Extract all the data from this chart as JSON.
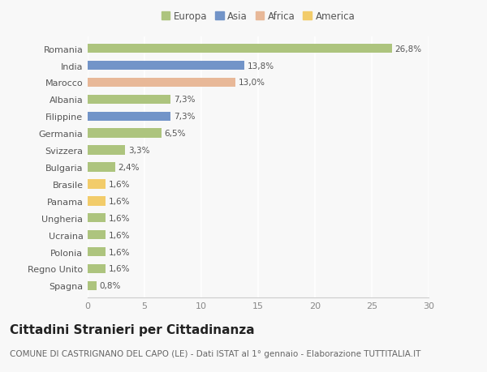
{
  "countries": [
    "Romania",
    "India",
    "Marocco",
    "Albania",
    "Filippine",
    "Germania",
    "Svizzera",
    "Bulgaria",
    "Brasile",
    "Panama",
    "Ungheria",
    "Ucraina",
    "Polonia",
    "Regno Unito",
    "Spagna"
  ],
  "values": [
    26.8,
    13.8,
    13.0,
    7.3,
    7.3,
    6.5,
    3.3,
    2.4,
    1.6,
    1.6,
    1.6,
    1.6,
    1.6,
    1.6,
    0.8
  ],
  "labels": [
    "26,8%",
    "13,8%",
    "13,0%",
    "7,3%",
    "7,3%",
    "6,5%",
    "3,3%",
    "2,4%",
    "1,6%",
    "1,6%",
    "1,6%",
    "1,6%",
    "1,6%",
    "1,6%",
    "0,8%"
  ],
  "continents": [
    "Europa",
    "Asia",
    "Africa",
    "Europa",
    "Asia",
    "Europa",
    "Europa",
    "Europa",
    "America",
    "America",
    "Europa",
    "Europa",
    "Europa",
    "Europa",
    "Europa"
  ],
  "colors": {
    "Europa": "#adc47e",
    "Asia": "#7294c8",
    "Africa": "#e8b898",
    "America": "#f2cc6a"
  },
  "legend_order": [
    "Europa",
    "Asia",
    "Africa",
    "America"
  ],
  "legend_colors": [
    "#adc47e",
    "#7294c8",
    "#e8b898",
    "#f2cc6a"
  ],
  "xlim": [
    0,
    30
  ],
  "xticks": [
    0,
    5,
    10,
    15,
    20,
    25,
    30
  ],
  "title": "Cittadini Stranieri per Cittadinanza",
  "subtitle": "COMUNE DI CASTRIGNANO DEL CAPO (LE) - Dati ISTAT al 1° gennaio - Elaborazione TUTTITALIA.IT",
  "background_color": "#f8f8f8",
  "plot_background": "#f8f8f8",
  "grid_color": "#ffffff",
  "bar_height": 0.55,
  "title_fontsize": 11,
  "subtitle_fontsize": 7.5,
  "label_fontsize": 7.5,
  "tick_fontsize": 8,
  "legend_fontsize": 8.5
}
